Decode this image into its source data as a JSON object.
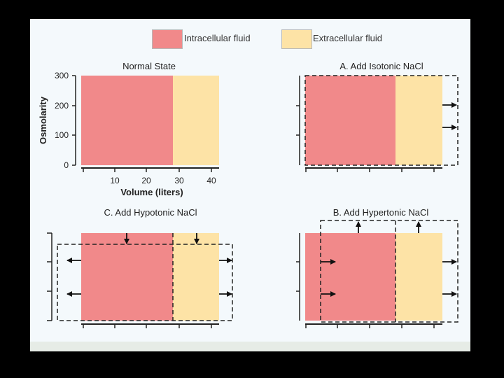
{
  "colors": {
    "intracellular": "#f1898a",
    "extracellular": "#fde3a6",
    "background": "#f4f9fc"
  },
  "legend": {
    "intracellular_label": "Intracellular fluid",
    "extracellular_label": "Extracellular fluid"
  },
  "panels": {
    "normal": {
      "title": "Normal State",
      "ylabel": "Osmolarity",
      "xlabel": "Volume (liters)",
      "y_ticks": [
        "300",
        "200",
        "100",
        "0"
      ],
      "x_ticks": [
        "10",
        "20",
        "30",
        "40"
      ]
    },
    "isotonic": {
      "title": "A. Add Isotonic NaCl"
    },
    "hypotonic": {
      "title": "C. Add Hypotonic NaCl"
    },
    "hypertonic": {
      "title": "B. Add Hypertonic NaCl"
    }
  }
}
